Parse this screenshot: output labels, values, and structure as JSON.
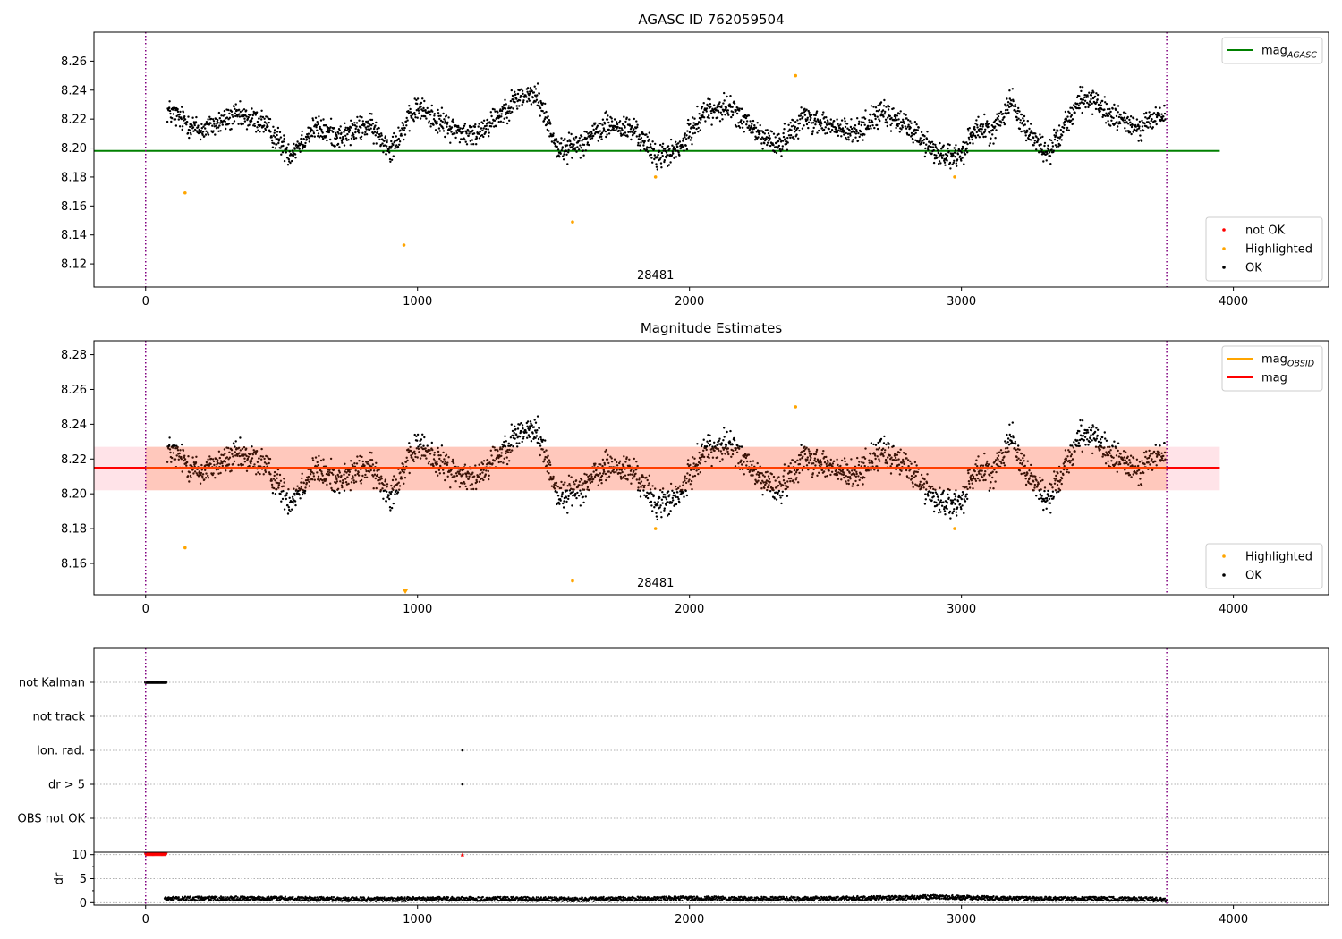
{
  "figure": {
    "colors": {
      "ok": "#000000",
      "highlighted": "#ffa500",
      "not_ok": "#ff0000",
      "agasc_line": "#008000",
      "obsid_line": "#ffa500",
      "mag_line": "#ff0000",
      "band_fill": "#ffc0cb",
      "band_fill_inner": "#ffa07a",
      "obs_boundary": "#800080"
    }
  },
  "chart_data": [
    {
      "type": "scatter",
      "title": "AGASC ID 762059504",
      "xlabel": "",
      "ylabel": "",
      "xlim": [
        -190,
        4350
      ],
      "ylim": [
        8.104,
        8.28
      ],
      "xticks": [
        0,
        1000,
        2000,
        3000,
        4000
      ],
      "yticks": [
        8.12,
        8.14,
        8.16,
        8.18,
        8.2,
        8.22,
        8.24,
        8.26
      ],
      "obs_boundaries": [
        0,
        3755
      ],
      "obs_label": "28481",
      "hlines": [
        {
          "name": "mag_AGASC",
          "y": 8.198,
          "x": [
            -190,
            3950
          ]
        }
      ],
      "ok_series": {
        "x": [
          80,
          200,
          330,
          430,
          530,
          620,
          720,
          820,
          900,
          1000,
          1100,
          1200,
          1280,
          1380,
          1440,
          1520,
          1600,
          1700,
          1800,
          1880,
          1960,
          2050,
          2150,
          2250,
          2330,
          2420,
          2500,
          2600,
          2700,
          2800,
          2900,
          2990,
          3050,
          3120,
          3180,
          3240,
          3320,
          3390,
          3450,
          3550,
          3650,
          3750
        ],
        "y": [
          8.226,
          8.212,
          8.222,
          8.218,
          8.196,
          8.214,
          8.208,
          8.216,
          8.2,
          8.228,
          8.216,
          8.208,
          8.22,
          8.236,
          8.236,
          8.198,
          8.204,
          8.216,
          8.212,
          8.194,
          8.198,
          8.225,
          8.228,
          8.21,
          8.202,
          8.222,
          8.216,
          8.21,
          8.224,
          8.216,
          8.198,
          8.192,
          8.214,
          8.212,
          8.234,
          8.212,
          8.196,
          8.22,
          8.236,
          8.222,
          8.214,
          8.224
        ]
      },
      "highlighted_points": {
        "x": [
          145,
          950,
          1570,
          1875,
          2390,
          2975
        ],
        "y": [
          8.169,
          8.133,
          8.149,
          8.18,
          8.25,
          8.18
        ]
      },
      "legends": [
        {
          "position": "upper-right",
          "entries": [
            {
              "kind": "line",
              "label": "mag",
              "sub": "AGASC",
              "color": "#008000"
            }
          ]
        },
        {
          "position": "lower-right",
          "entries": [
            {
              "kind": "dot",
              "label": "not OK",
              "color": "#ff0000"
            },
            {
              "kind": "dot",
              "label": "Highlighted",
              "color": "#ffa500"
            },
            {
              "kind": "dot",
              "label": "OK",
              "color": "#000000"
            }
          ]
        }
      ]
    },
    {
      "type": "scatter",
      "title": "Magnitude Estimates",
      "xlabel": "",
      "ylabel": "",
      "xlim": [
        -190,
        4350
      ],
      "ylim": [
        8.142,
        8.288
      ],
      "xticks": [
        0,
        1000,
        2000,
        3000,
        4000
      ],
      "yticks": [
        8.16,
        8.18,
        8.2,
        8.22,
        8.24,
        8.26,
        8.28
      ],
      "obs_boundaries": [
        0,
        3755
      ],
      "obs_label": "28481",
      "hlines": [
        {
          "name": "mag",
          "y": 8.215,
          "x": [
            -190,
            3950
          ]
        }
      ],
      "band": {
        "y0": 8.202,
        "y1": 8.227,
        "x": [
          -190,
          3950
        ],
        "inner_x": [
          0,
          3755
        ]
      },
      "ok_series_ref": 0,
      "highlighted_points": {
        "x": [
          145,
          955,
          1570,
          1875,
          2390,
          2975
        ],
        "y": [
          8.169,
          8.144,
          8.15,
          8.18,
          8.25,
          8.18
        ]
      },
      "legends": [
        {
          "position": "upper-right",
          "entries": [
            {
              "kind": "line",
              "label": "mag",
              "sub": "OBSID",
              "color": "#ffa500"
            },
            {
              "kind": "line",
              "label": "mag",
              "sub": "",
              "color": "#ff0000"
            }
          ]
        },
        {
          "position": "lower-right",
          "entries": [
            {
              "kind": "dot",
              "label": "Highlighted",
              "color": "#ffa500"
            },
            {
              "kind": "dot",
              "label": "OK",
              "color": "#000000"
            }
          ]
        }
      ]
    },
    {
      "type": "scatter",
      "title": "",
      "xlim": [
        -190,
        4350
      ],
      "flags": [
        "not Kalman",
        "not track",
        "Ion. rad.",
        "dr > 5",
        "OBS not OK"
      ],
      "flag_events": [
        {
          "flag": "not Kalman",
          "x0": 0,
          "x1": 75
        },
        {
          "flag": "Ion. rad.",
          "x0": 1165,
          "x1": 1165
        },
        {
          "flag": "dr > 5",
          "x0": 1165,
          "x1": 1165
        }
      ],
      "obs_boundaries": [
        0,
        3755
      ]
    },
    {
      "type": "scatter",
      "title": "",
      "xlabel": "",
      "ylabel": "dr",
      "xlim": [
        -190,
        4350
      ],
      "ylim": [
        -0.5,
        10.5
      ],
      "xticks": [
        0,
        1000,
        2000,
        3000,
        4000
      ],
      "yticks": [
        0,
        5,
        10
      ],
      "obs_boundaries": [
        0,
        3755
      ],
      "clipped_points": {
        "x0": 0,
        "x1": 75,
        "y": 10,
        "extra_x": [
          1165
        ]
      },
      "dr_series": {
        "x": [
          70,
          400,
          800,
          1200,
          1600,
          2000,
          2400,
          2800,
          2900,
          3200,
          3600,
          3755
        ],
        "y": [
          0.8,
          0.9,
          0.7,
          0.8,
          0.7,
          0.9,
          0.8,
          1.0,
          1.2,
          0.8,
          0.8,
          0.6
        ]
      }
    }
  ]
}
